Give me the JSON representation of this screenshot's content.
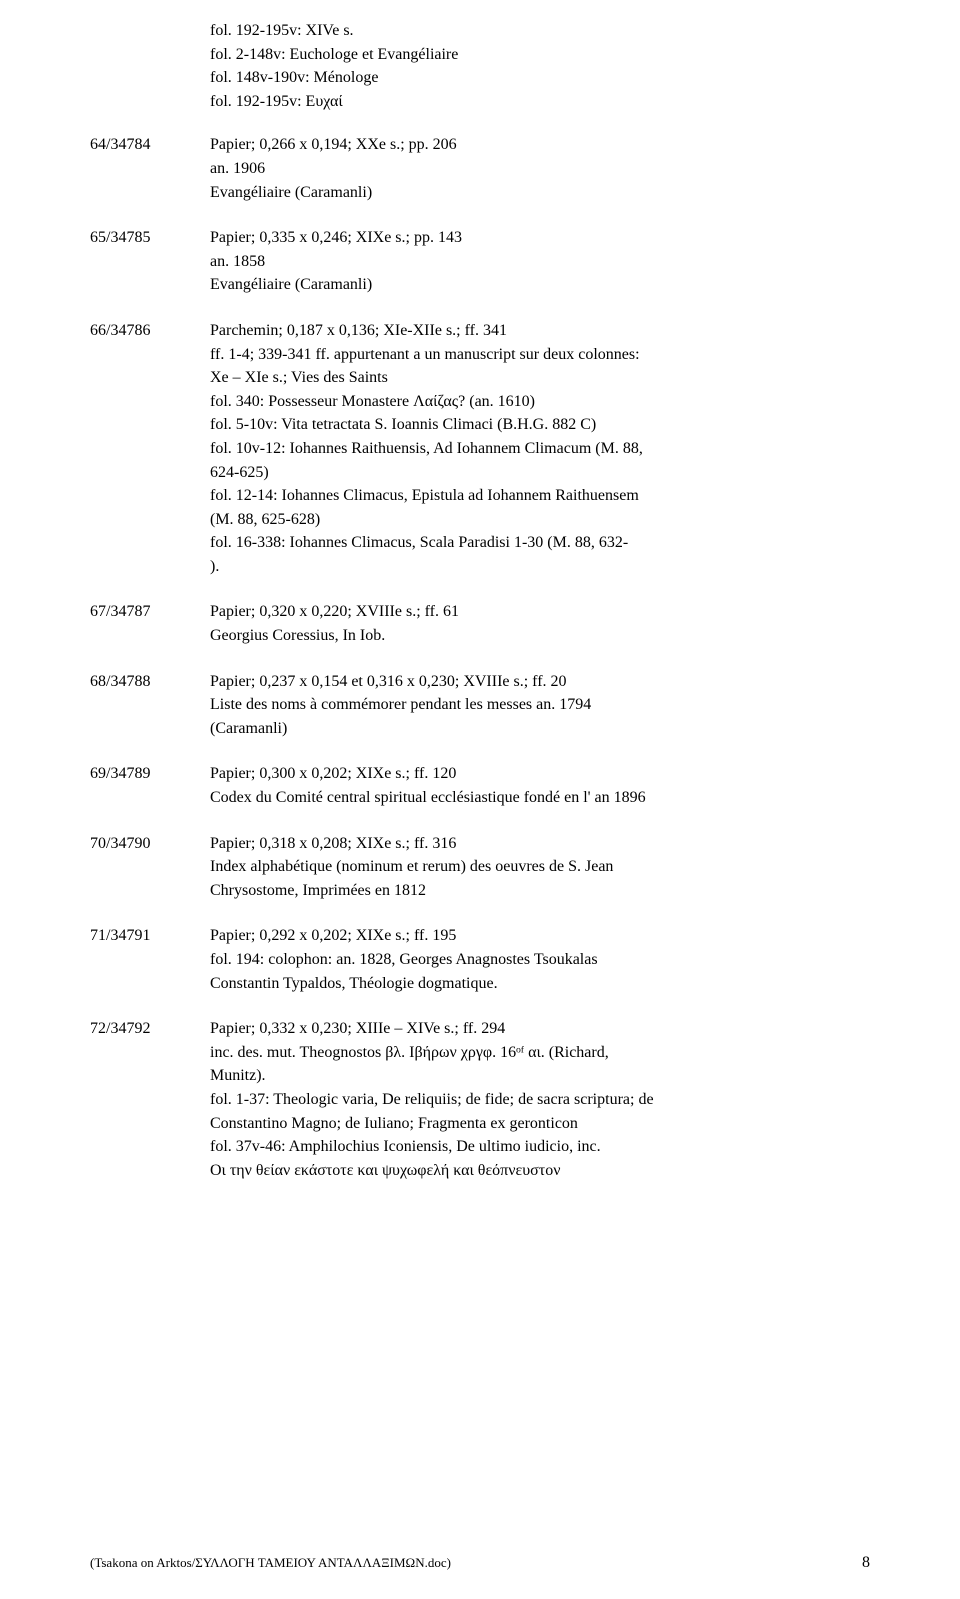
{
  "header_lines": [
    "fol. 192-195v: XIVe s.",
    "fol. 2-148v: Euchologe et Evangéliaire",
    "fol. 148v-190v: Ménologe",
    "fol. 192-195v: Ευχαί"
  ],
  "entries": [
    {
      "num": "64/34784",
      "lines": [
        "Papier; 0,266 x 0,194; XXe s.; pp. 206",
        "an. 1906",
        "Evangéliaire (Caramanli)"
      ]
    },
    {
      "num": "65/34785",
      "lines": [
        "Papier; 0,335 x 0,246; XIXe s.; pp. 143",
        "an. 1858",
        "Evangéliaire (Caramanli)"
      ]
    },
    {
      "num": "66/34786",
      "lines": [
        "Parchemin; 0,187 x 0,136; XIe-XIIe s.; ff. 341",
        "ff. 1-4; 339-341 ff. appurtenant a un manuscript sur deux colonnes:",
        "Xe – XIe s.; Vies des Saints",
        "fol. 340: Possesseur Monastere Λαίζας? (an. 1610)",
        "fol. 5-10v: Vita tetractata S. Ioannis Climaci (B.H.G. 882 C)",
        "fol. 10v-12: Iohannes Raithuensis, Ad Iohannem Climacum (M. 88,",
        "624-625)",
        "fol. 12-14: Iohannes Climacus, Epistula ad Iohannem Raithuensem",
        "(M. 88, 625-628)",
        "fol. 16-338: Iohannes Climacus, Scala Paradisi 1-30 (M. 88, 632-",
        ")."
      ]
    },
    {
      "num": "67/34787",
      "lines": [
        "Papier; 0,320 x 0,220; XVIIIe s.; ff. 61",
        "Georgius Coressius, In Iob."
      ]
    },
    {
      "num": "68/34788",
      "lines": [
        "Papier; 0,237 x 0,154 et 0,316 x 0,230; XVIIIe s.; ff. 20",
        "Liste des noms à commémorer pendant les messes an. 1794",
        "(Caramanli)"
      ]
    },
    {
      "num": "69/34789",
      "lines": [
        "Papier; 0,300 x 0,202; XIXe s.; ff. 120",
        "Codex du Comité central spiritual ecclésiastique fondé en l' an 1896"
      ]
    },
    {
      "num": "70/34790",
      "lines": [
        "Papier; 0,318 x 0,208; XIXe s.; ff. 316",
        "Index alphabétique (nominum et rerum) des oeuvres de S. Jean",
        "Chrysostome, Imprimées en 1812"
      ]
    },
    {
      "num": "71/34791",
      "lines": [
        "Papier; 0,292 x 0,202; XIXe s.; ff. 195",
        "fol. 194: colophon: an. 1828, Georges Anagnostes Tsoukalas",
        "Constantin Typaldos, Théologie dogmatique."
      ]
    },
    {
      "num": "72/34792",
      "lines": [
        "Papier; 0,332 x 0,230; XIIIe – XIVe s.; ff. 294",
        "inc. des. mut. Theognostos βλ. Ιβήρων χργφ. 16ᵒᶠ αι. (Richard,",
        "Munitz).",
        "fol. 1-37: Theologic varia, De reliquiis; de fide; de sacra scriptura; de",
        "Constantino Magno; de Iuliano; Fragmenta ex geronticon",
        "fol. 37v-46: Amphilochius Iconiensis, De ultimo iudicio, inc.",
        "Οι την θείαν εκάστοτε και ψυχωφελή και θεόπνευστον"
      ]
    }
  ],
  "footer_left": "(Tsakona on Arktos/ΣΥΛΛΟΓΗ ΤΑΜΕΙΟΥ ΑΝΤΑΛΛΑΞΙΜΩΝ.doc)",
  "footer_page": "8"
}
